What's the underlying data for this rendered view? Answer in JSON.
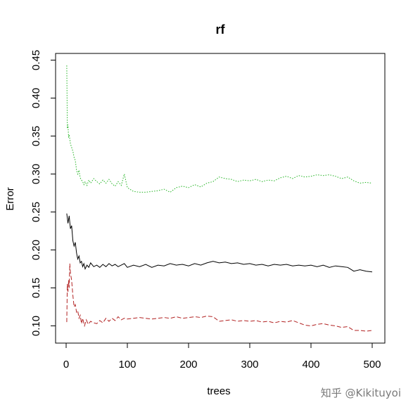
{
  "chart_data": {
    "type": "line",
    "title": "rf",
    "xlabel": "trees",
    "ylabel": "Error",
    "xlim": [
      0,
      500
    ],
    "ylim": [
      0.085,
      0.455
    ],
    "x_ticks": [
      0,
      100,
      200,
      300,
      400,
      500
    ],
    "y_ticks": [
      0.1,
      0.15,
      0.2,
      0.25,
      0.3,
      0.35,
      0.4,
      0.45
    ],
    "grid": false,
    "legend": "none",
    "series": [
      {
        "color": "#000000",
        "line_style": "solid",
        "points": [
          [
            1,
            0.248
          ],
          [
            3,
            0.235
          ],
          [
            5,
            0.245
          ],
          [
            7,
            0.228
          ],
          [
            9,
            0.232
          ],
          [
            11,
            0.212
          ],
          [
            13,
            0.205
          ],
          [
            15,
            0.21
          ],
          [
            17,
            0.196
          ],
          [
            19,
            0.188
          ],
          [
            21,
            0.192
          ],
          [
            23,
            0.183
          ],
          [
            25,
            0.185
          ],
          [
            27,
            0.178
          ],
          [
            29,
            0.182
          ],
          [
            31,
            0.175
          ],
          [
            34,
            0.18
          ],
          [
            37,
            0.177
          ],
          [
            40,
            0.183
          ],
          [
            45,
            0.178
          ],
          [
            50,
            0.18
          ],
          [
            55,
            0.177
          ],
          [
            60,
            0.181
          ],
          [
            65,
            0.178
          ],
          [
            70,
            0.182
          ],
          [
            75,
            0.179
          ],
          [
            80,
            0.181
          ],
          [
            85,
            0.178
          ],
          [
            90,
            0.18
          ],
          [
            95,
            0.182
          ],
          [
            100,
            0.177
          ],
          [
            110,
            0.18
          ],
          [
            120,
            0.178
          ],
          [
            130,
            0.181
          ],
          [
            140,
            0.177
          ],
          [
            150,
            0.18
          ],
          [
            160,
            0.179
          ],
          [
            170,
            0.182
          ],
          [
            180,
            0.18
          ],
          [
            190,
            0.181
          ],
          [
            200,
            0.179
          ],
          [
            210,
            0.182
          ],
          [
            220,
            0.18
          ],
          [
            230,
            0.183
          ],
          [
            240,
            0.185
          ],
          [
            250,
            0.183
          ],
          [
            260,
            0.184
          ],
          [
            270,
            0.182
          ],
          [
            280,
            0.183
          ],
          [
            290,
            0.181
          ],
          [
            300,
            0.182
          ],
          [
            310,
            0.18
          ],
          [
            320,
            0.181
          ],
          [
            330,
            0.179
          ],
          [
            340,
            0.181
          ],
          [
            350,
            0.18
          ],
          [
            360,
            0.181
          ],
          [
            370,
            0.179
          ],
          [
            380,
            0.18
          ],
          [
            390,
            0.179
          ],
          [
            400,
            0.18
          ],
          [
            410,
            0.178
          ],
          [
            420,
            0.18
          ],
          [
            430,
            0.177
          ],
          [
            440,
            0.179
          ],
          [
            450,
            0.178
          ],
          [
            460,
            0.177
          ],
          [
            470,
            0.172
          ],
          [
            480,
            0.174
          ],
          [
            490,
            0.172
          ],
          [
            500,
            0.171
          ]
        ]
      },
      {
        "color": "#b22222",
        "line_style": "dashed",
        "points": [
          [
            1,
            0.105
          ],
          [
            2,
            0.155
          ],
          [
            3,
            0.145
          ],
          [
            4,
            0.16
          ],
          [
            5,
            0.15
          ],
          [
            6,
            0.182
          ],
          [
            7,
            0.17
          ],
          [
            9,
            0.16
          ],
          [
            11,
            0.14
          ],
          [
            13,
            0.125
          ],
          [
            15,
            0.128
          ],
          [
            17,
            0.118
          ],
          [
            19,
            0.12
          ],
          [
            21,
            0.11
          ],
          [
            23,
            0.114
          ],
          [
            25,
            0.103
          ],
          [
            27,
            0.11
          ],
          [
            30,
            0.1
          ],
          [
            33,
            0.108
          ],
          [
            36,
            0.102
          ],
          [
            40,
            0.106
          ],
          [
            45,
            0.104
          ],
          [
            50,
            0.103
          ],
          [
            55,
            0.107
          ],
          [
            60,
            0.104
          ],
          [
            65,
            0.11
          ],
          [
            70,
            0.106
          ],
          [
            75,
            0.11
          ],
          [
            80,
            0.107
          ],
          [
            85,
            0.112
          ],
          [
            90,
            0.108
          ],
          [
            95,
            0.11
          ],
          [
            100,
            0.109
          ],
          [
            110,
            0.11
          ],
          [
            120,
            0.111
          ],
          [
            130,
            0.11
          ],
          [
            140,
            0.109
          ],
          [
            150,
            0.11
          ],
          [
            160,
            0.111
          ],
          [
            170,
            0.11
          ],
          [
            180,
            0.112
          ],
          [
            190,
            0.11
          ],
          [
            200,
            0.111
          ],
          [
            210,
            0.112
          ],
          [
            220,
            0.111
          ],
          [
            230,
            0.113
          ],
          [
            240,
            0.112
          ],
          [
            250,
            0.106
          ],
          [
            260,
            0.107
          ],
          [
            270,
            0.108
          ],
          [
            280,
            0.106
          ],
          [
            290,
            0.107
          ],
          [
            300,
            0.106
          ],
          [
            310,
            0.107
          ],
          [
            320,
            0.105
          ],
          [
            330,
            0.106
          ],
          [
            340,
            0.104
          ],
          [
            350,
            0.106
          ],
          [
            360,
            0.105
          ],
          [
            370,
            0.107
          ],
          [
            380,
            0.104
          ],
          [
            390,
            0.101
          ],
          [
            400,
            0.1
          ],
          [
            410,
            0.102
          ],
          [
            420,
            0.103
          ],
          [
            430,
            0.101
          ],
          [
            440,
            0.1
          ],
          [
            450,
            0.098
          ],
          [
            460,
            0.099
          ],
          [
            470,
            0.094
          ],
          [
            480,
            0.094
          ],
          [
            490,
            0.093
          ],
          [
            500,
            0.094
          ]
        ]
      },
      {
        "color": "#22b322",
        "line_style": "dotted",
        "points": [
          [
            1,
            0.443
          ],
          [
            2,
            0.36
          ],
          [
            3,
            0.365
          ],
          [
            4,
            0.348
          ],
          [
            5,
            0.352
          ],
          [
            7,
            0.34
          ],
          [
            9,
            0.335
          ],
          [
            11,
            0.33
          ],
          [
            13,
            0.322
          ],
          [
            15,
            0.318
          ],
          [
            17,
            0.305
          ],
          [
            19,
            0.3
          ],
          [
            21,
            0.305
          ],
          [
            23,
            0.295
          ],
          [
            25,
            0.292
          ],
          [
            27,
            0.29
          ],
          [
            29,
            0.286
          ],
          [
            31,
            0.29
          ],
          [
            34,
            0.285
          ],
          [
            37,
            0.292
          ],
          [
            40,
            0.288
          ],
          [
            45,
            0.294
          ],
          [
            50,
            0.29
          ],
          [
            55,
            0.287
          ],
          [
            60,
            0.292
          ],
          [
            65,
            0.288
          ],
          [
            70,
            0.293
          ],
          [
            75,
            0.287
          ],
          [
            80,
            0.284
          ],
          [
            85,
            0.29
          ],
          [
            90,
            0.285
          ],
          [
            95,
            0.3
          ],
          [
            100,
            0.282
          ],
          [
            110,
            0.277
          ],
          [
            120,
            0.276
          ],
          [
            130,
            0.276
          ],
          [
            140,
            0.277
          ],
          [
            150,
            0.278
          ],
          [
            160,
            0.28
          ],
          [
            170,
            0.276
          ],
          [
            180,
            0.282
          ],
          [
            190,
            0.284
          ],
          [
            200,
            0.282
          ],
          [
            210,
            0.286
          ],
          [
            220,
            0.283
          ],
          [
            230,
            0.288
          ],
          [
            240,
            0.29
          ],
          [
            250,
            0.296
          ],
          [
            260,
            0.294
          ],
          [
            270,
            0.293
          ],
          [
            280,
            0.29
          ],
          [
            290,
            0.292
          ],
          [
            300,
            0.291
          ],
          [
            310,
            0.293
          ],
          [
            320,
            0.29
          ],
          [
            330,
            0.292
          ],
          [
            340,
            0.291
          ],
          [
            350,
            0.295
          ],
          [
            360,
            0.297
          ],
          [
            370,
            0.294
          ],
          [
            380,
            0.298
          ],
          [
            390,
            0.296
          ],
          [
            400,
            0.297
          ],
          [
            410,
            0.299
          ],
          [
            420,
            0.298
          ],
          [
            430,
            0.299
          ],
          [
            440,
            0.297
          ],
          [
            450,
            0.294
          ],
          [
            460,
            0.296
          ],
          [
            470,
            0.291
          ],
          [
            480,
            0.288
          ],
          [
            490,
            0.289
          ],
          [
            500,
            0.288
          ]
        ]
      }
    ]
  },
  "watermark": "知乎 @Kikituyoi"
}
